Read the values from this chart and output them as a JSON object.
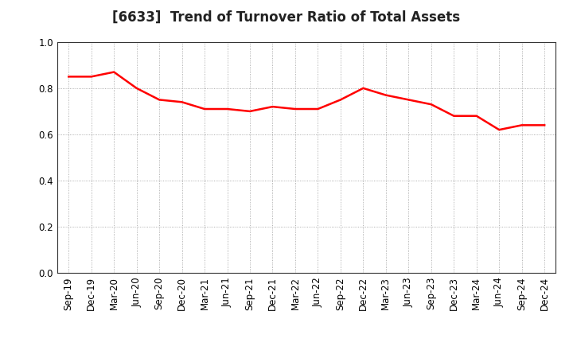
{
  "title": "[6633]  Trend of Turnover Ratio of Total Assets",
  "x_labels": [
    "Sep-19",
    "Dec-19",
    "Mar-20",
    "Jun-20",
    "Sep-20",
    "Dec-20",
    "Mar-21",
    "Jun-21",
    "Sep-21",
    "Dec-21",
    "Mar-22",
    "Jun-22",
    "Sep-22",
    "Dec-22",
    "Mar-23",
    "Jun-23",
    "Sep-23",
    "Dec-23",
    "Mar-24",
    "Jun-24",
    "Sep-24",
    "Dec-24"
  ],
  "values": [
    0.85,
    0.85,
    0.87,
    0.8,
    0.75,
    0.74,
    0.71,
    0.71,
    0.7,
    0.72,
    0.71,
    0.71,
    0.75,
    0.8,
    0.77,
    0.75,
    0.73,
    0.68,
    0.68,
    0.62,
    0.64,
    0.64
  ],
  "line_color": "#FF0000",
  "line_width": 1.8,
  "ylim": [
    0.0,
    1.0
  ],
  "yticks": [
    0.0,
    0.2,
    0.4,
    0.6,
    0.8,
    1.0
  ],
  "grid_color": "#999999",
  "grid_linestyle": ":",
  "bg_color": "#ffffff",
  "title_fontsize": 12,
  "tick_fontsize": 8.5
}
